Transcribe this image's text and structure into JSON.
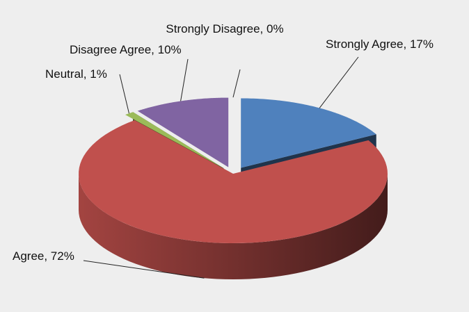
{
  "chart_data": {
    "type": "pie3d",
    "values": [
      17,
      72,
      1,
      10,
      0
    ],
    "value_labels": [
      "Strongly Agree, 17%",
      "Agree, 72%",
      "Neutral, 1%",
      "Disagree Agree, 10%",
      "Strongly Disagree, 0%"
    ],
    "colors": [
      "#4f81bd",
      "#c0504d",
      "#9bbb59",
      "#8064a2",
      "#4bacc6"
    ]
  }
}
